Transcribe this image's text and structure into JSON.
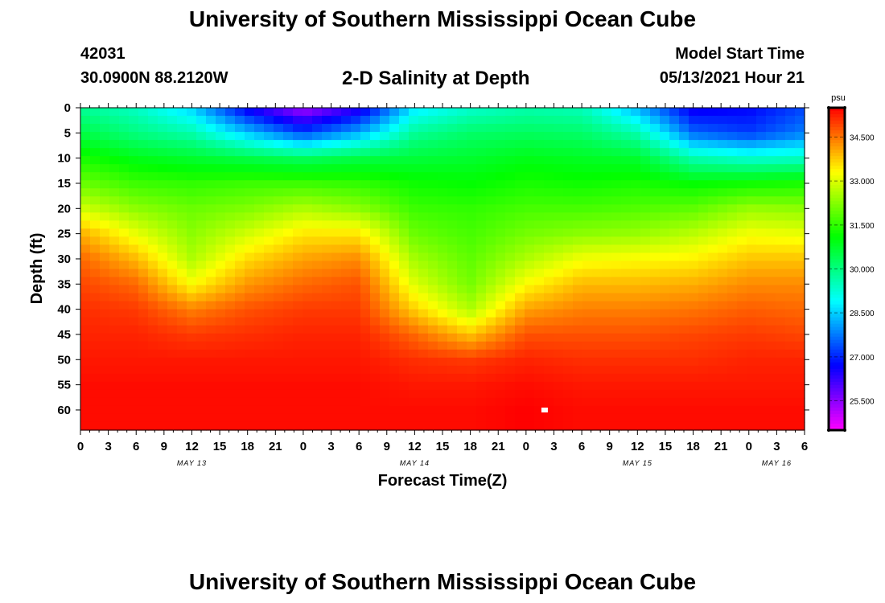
{
  "header": {
    "title": "University of Southern Mississippi Ocean Cube",
    "station_id": "42031",
    "station_coords": "30.0900N  88.2120W",
    "subtitle": "2-D Salinity at Depth",
    "model_start_label": "Model Start Time",
    "model_start_time": "05/13/2021 Hour 21"
  },
  "footer": {
    "title": "University of Southern Mississippi Ocean Cube"
  },
  "chart_data": {
    "type": "heatmap",
    "title": "2-D Salinity at Depth",
    "xlabel": "Forecast Time(Z)",
    "ylabel": "Depth (ft)",
    "x_tick_labels": [
      "0",
      "3",
      "6",
      "9",
      "12",
      "15",
      "18",
      "21",
      "0",
      "3",
      "6",
      "9",
      "12",
      "15",
      "18",
      "21",
      "0",
      "3",
      "6",
      "9",
      "12",
      "15",
      "18",
      "21",
      "0",
      "3",
      "6"
    ],
    "x_date_labels": [
      {
        "label": "MAY 13",
        "tick_index": 4
      },
      {
        "label": "MAY 14",
        "tick_index": 12
      },
      {
        "label": "MAY 15",
        "tick_index": 20
      },
      {
        "label": "MAY 16",
        "tick_index": 25
      }
    ],
    "xlim_hours": [
      0,
      78
    ],
    "y_ticks": [
      0,
      5,
      10,
      15,
      20,
      25,
      30,
      35,
      40,
      45,
      50,
      55,
      60
    ],
    "ylim": [
      0,
      64
    ],
    "y_inverted": true,
    "colorbar": {
      "unit": "psu",
      "tick_labels": [
        "34.500",
        "33.000",
        "31.500",
        "30.000",
        "28.500",
        "27.000",
        "25.500"
      ],
      "tick_values": [
        34.5,
        33.0,
        31.5,
        30.0,
        28.5,
        27.0,
        25.5
      ],
      "range": [
        24.5,
        35.5
      ]
    },
    "marker": {
      "time_hours": 50,
      "depth_ft": 60,
      "color": "#ffffff"
    },
    "profile_times_hours": [
      0,
      6,
      12,
      18,
      24,
      30,
      36,
      42,
      48,
      54,
      60,
      66,
      72,
      78
    ],
    "profile_depths_ft": [
      0,
      5,
      10,
      15,
      20,
      25,
      30,
      35,
      40,
      45,
      50,
      55,
      60,
      64
    ],
    "salinity_psu": [
      [
        29.8,
        30.5,
        31.3,
        32.0,
        32.9,
        34.0,
        34.6,
        34.9,
        35.1,
        35.2,
        35.3,
        35.4,
        35.4,
        35.4
      ],
      [
        29.4,
        30.0,
        30.9,
        31.6,
        32.3,
        33.1,
        33.9,
        34.6,
        35.0,
        35.2,
        35.3,
        35.4,
        35.4,
        35.4
      ],
      [
        28.5,
        29.6,
        30.7,
        31.5,
        32.0,
        32.3,
        32.6,
        33.3,
        34.4,
        35.0,
        35.3,
        35.4,
        35.4,
        35.4
      ],
      [
        26.5,
        28.4,
        30.5,
        31.6,
        32.2,
        32.9,
        33.6,
        34.2,
        34.8,
        35.1,
        35.3,
        35.4,
        35.4,
        35.4
      ],
      [
        25.2,
        27.3,
        30.3,
        31.6,
        32.6,
        33.5,
        34.1,
        34.6,
        35.0,
        35.2,
        35.3,
        35.4,
        35.4,
        35.4
      ],
      [
        26.3,
        28.2,
        30.5,
        31.5,
        32.3,
        33.5,
        34.3,
        34.8,
        35.0,
        35.2,
        35.3,
        35.4,
        35.4,
        35.4
      ],
      [
        28.7,
        29.8,
        30.6,
        31.2,
        31.6,
        32.0,
        32.5,
        33.0,
        33.7,
        34.6,
        35.1,
        35.3,
        35.4,
        35.4
      ],
      [
        29.3,
        30.2,
        30.7,
        31.1,
        31.5,
        31.7,
        31.9,
        32.1,
        32.6,
        33.8,
        35.0,
        35.3,
        35.4,
        35.4
      ],
      [
        29.6,
        30.3,
        30.9,
        31.3,
        31.7,
        32.1,
        32.6,
        33.3,
        34.1,
        34.8,
        35.2,
        35.4,
        35.5,
        35.5
      ],
      [
        29.5,
        30.2,
        30.8,
        31.2,
        31.7,
        32.3,
        33.2,
        33.9,
        34.4,
        34.8,
        35.1,
        35.3,
        35.4,
        35.4
      ],
      [
        28.2,
        29.6,
        30.7,
        31.3,
        31.8,
        32.4,
        33.3,
        33.9,
        34.4,
        34.8,
        35.1,
        35.3,
        35.4,
        35.4
      ],
      [
        26.5,
        27.6,
        29.6,
        31.1,
        31.9,
        32.7,
        33.4,
        34.0,
        34.5,
        34.9,
        35.1,
        35.3,
        35.4,
        35.4
      ],
      [
        26.7,
        27.2,
        29.3,
        31.2,
        32.4,
        33.2,
        33.8,
        34.3,
        34.7,
        35.0,
        35.2,
        35.3,
        35.4,
        35.4
      ],
      [
        27.3,
        27.8,
        29.4,
        31.3,
        32.3,
        33.1,
        33.8,
        34.3,
        34.6,
        34.9,
        35.2,
        35.3,
        35.4,
        35.4
      ]
    ]
  }
}
